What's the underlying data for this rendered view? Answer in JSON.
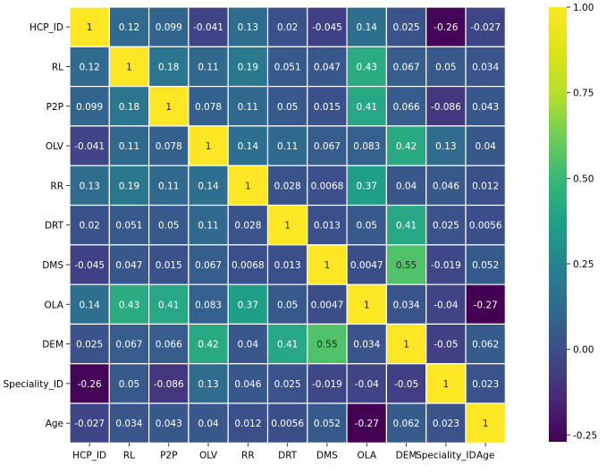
{
  "chart_data": {
    "type": "heatmap",
    "title": "",
    "xlabel": "",
    "ylabel": "",
    "colormap": "viridis",
    "colorbar": {
      "range": [
        -0.27,
        1.0
      ],
      "ticks": [
        -0.25,
        0.0,
        0.25,
        0.5,
        0.75,
        1.0
      ],
      "tick_labels": [
        "-0.25",
        "0.00",
        "0.25",
        "0.50",
        "0.75",
        "1.00"
      ]
    },
    "row_labels": [
      "HCP_ID",
      "RL",
      "P2P",
      "OLV",
      "RR",
      "DRT",
      "DMS",
      "OLA",
      "DEM",
      "Speciality_ID",
      "Age"
    ],
    "col_labels": [
      "HCP_ID",
      "RL",
      "P2P",
      "OLV",
      "RR",
      "DRT",
      "DMS",
      "OLA",
      "DEM",
      "Speciality_ID",
      "Age"
    ],
    "values": [
      [
        1,
        0.12,
        0.099,
        -0.041,
        0.13,
        0.02,
        -0.045,
        0.14,
        0.025,
        -0.26,
        -0.027
      ],
      [
        0.12,
        1,
        0.18,
        0.11,
        0.19,
        0.051,
        0.047,
        0.43,
        0.067,
        0.05,
        0.034
      ],
      [
        0.099,
        0.18,
        1,
        0.078,
        0.11,
        0.05,
        0.015,
        0.41,
        0.066,
        -0.086,
        0.043
      ],
      [
        -0.041,
        0.11,
        0.078,
        1,
        0.14,
        0.11,
        0.067,
        0.083,
        0.42,
        0.13,
        0.04
      ],
      [
        0.13,
        0.19,
        0.11,
        0.14,
        1,
        0.028,
        0.0068,
        0.37,
        0.04,
        0.046,
        0.012
      ],
      [
        0.02,
        0.051,
        0.05,
        0.11,
        0.028,
        1,
        0.013,
        0.05,
        0.41,
        0.025,
        0.0056
      ],
      [
        -0.045,
        0.047,
        0.015,
        0.067,
        0.0068,
        0.013,
        1,
        0.0047,
        0.55,
        -0.019,
        0.052
      ],
      [
        0.14,
        0.43,
        0.41,
        0.083,
        0.37,
        0.05,
        0.0047,
        1,
        0.034,
        -0.04,
        -0.27
      ],
      [
        0.025,
        0.067,
        0.066,
        0.42,
        0.04,
        0.41,
        0.55,
        0.034,
        1,
        -0.05,
        0.062
      ],
      [
        -0.26,
        0.05,
        -0.086,
        0.13,
        0.046,
        0.025,
        -0.019,
        -0.04,
        -0.05,
        1,
        0.023
      ],
      [
        -0.027,
        0.034,
        0.043,
        0.04,
        0.012,
        0.0056,
        0.052,
        -0.27,
        0.062,
        0.023,
        1
      ]
    ],
    "cell_labels": [
      [
        "1",
        "0.12",
        "0.099",
        "-0.041",
        "0.13",
        "0.02",
        "-0.045",
        "0.14",
        "0.025",
        "-0.26",
        "-0.027"
      ],
      [
        "0.12",
        "1",
        "0.18",
        "0.11",
        "0.19",
        "0.051",
        "0.047",
        "0.43",
        "0.067",
        "0.05",
        "0.034"
      ],
      [
        "0.099",
        "0.18",
        "1",
        "0.078",
        "0.11",
        "0.05",
        "0.015",
        "0.41",
        "0.066",
        "-0.086",
        "0.043"
      ],
      [
        "-0.041",
        "0.11",
        "0.078",
        "1",
        "0.14",
        "0.11",
        "0.067",
        "0.083",
        "0.42",
        "0.13",
        "0.04"
      ],
      [
        "0.13",
        "0.19",
        "0.11",
        "0.14",
        "1",
        "0.028",
        "0.0068",
        "0.37",
        "0.04",
        "0.046",
        "0.012"
      ],
      [
        "0.02",
        "0.051",
        "0.05",
        "0.11",
        "0.028",
        "1",
        "0.013",
        "0.05",
        "0.41",
        "0.025",
        "0.0056"
      ],
      [
        "-0.045",
        "0.047",
        "0.015",
        "0.067",
        "0.0068",
        "0.013",
        "1",
        "0.0047",
        "0.55",
        "-0.019",
        "0.052"
      ],
      [
        "0.14",
        "0.43",
        "0.41",
        "0.083",
        "0.37",
        "0.05",
        "0.0047",
        "1",
        "0.034",
        "-0.04",
        "-0.27"
      ],
      [
        "0.025",
        "0.067",
        "0.066",
        "0.42",
        "0.04",
        "0.41",
        "0.55",
        "0.034",
        "1",
        "-0.05",
        "0.062"
      ],
      [
        "-0.26",
        "0.05",
        "-0.086",
        "0.13",
        "0.046",
        "0.025",
        "-0.019",
        "-0.04",
        "-0.05",
        "1",
        "0.023"
      ],
      [
        "-0.027",
        "0.034",
        "0.043",
        "0.04",
        "0.012",
        "0.0056",
        "0.052",
        "-0.27",
        "0.062",
        "0.023",
        "1"
      ]
    ],
    "grid_line_color": "#ffffff"
  }
}
